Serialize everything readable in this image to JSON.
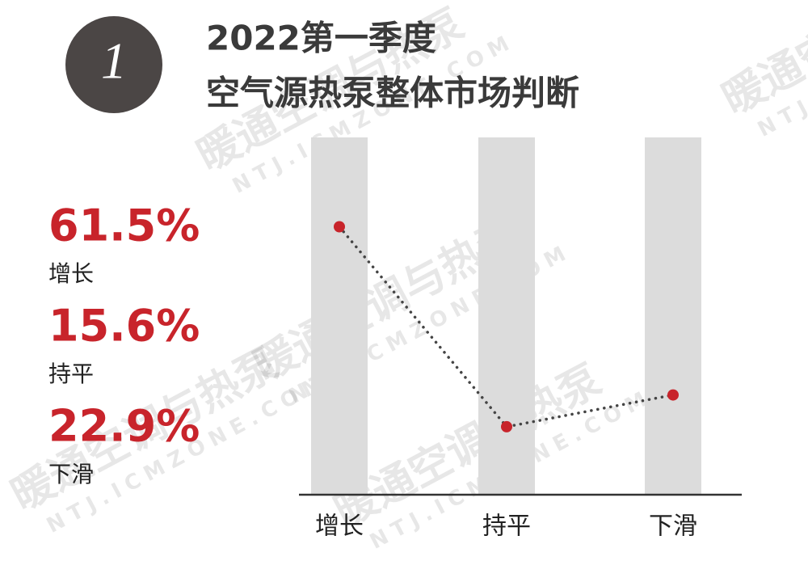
{
  "badge": "1",
  "watermark": [
    "暖通空调与热泵",
    "NTJ.ICMZONE.COM"
  ],
  "chart_data": {
    "type": "line",
    "title": [
      "2022第一季度",
      "空气源热泵整体市场判断"
    ],
    "categories": [
      "增长",
      "持平",
      "下滑"
    ],
    "values": [
      61.5,
      15.6,
      22.9
    ],
    "value_labels": [
      "61.5%",
      "15.6%",
      "22.9%"
    ],
    "color": "#c8242b",
    "ylim": [
      0,
      82
    ]
  }
}
